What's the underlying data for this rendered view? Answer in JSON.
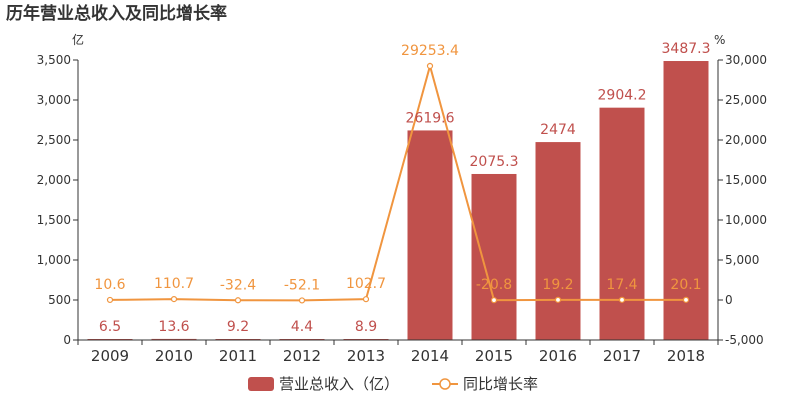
{
  "chart_data": {
    "type": "bar+line",
    "title": "历年营业总收入及同比增长率",
    "left_unit": "亿",
    "right_unit": "%",
    "categories": [
      "2009",
      "2010",
      "2011",
      "2012",
      "2013",
      "2014",
      "2015",
      "2016",
      "2017",
      "2018"
    ],
    "series": [
      {
        "name": "营业总收入（亿）",
        "type": "bar",
        "axis": "left",
        "color": "#c0504d",
        "values": [
          6.5,
          13.6,
          9.2,
          4.4,
          8.9,
          2619.6,
          2075.3,
          2474,
          2904.2,
          3487.3
        ],
        "labels": [
          "6.5",
          "13.6",
          "9.2",
          "4.4",
          "8.9",
          "2619.6",
          "2075.3",
          "2474",
          "2904.2",
          "3487.3"
        ]
      },
      {
        "name": "同比增长率",
        "type": "line",
        "axis": "right",
        "color": "#f0953f",
        "values": [
          10.6,
          110.7,
          -32.4,
          -52.1,
          102.7,
          29253.4,
          -20.8,
          19.2,
          17.4,
          20.1
        ],
        "labels": [
          "10.6",
          "110.7",
          "-32.4",
          "-52.1",
          "102.7",
          "29253.4",
          "-20.8",
          "19.2",
          "17.4",
          "20.1"
        ]
      }
    ],
    "left_axis": {
      "ylim": [
        0,
        3500
      ],
      "ticks": [
        0,
        500,
        1000,
        1500,
        2000,
        2500,
        3000,
        3500
      ],
      "tick_labels": [
        "0",
        "500",
        "1,000",
        "1,500",
        "2,000",
        "2,500",
        "3,000",
        "3,500"
      ]
    },
    "right_axis": {
      "ylim": [
        -5000,
        30000
      ],
      "ticks": [
        -5000,
        0,
        5000,
        10000,
        15000,
        20000,
        25000,
        30000
      ],
      "tick_labels": [
        "-5,000",
        "0",
        "5,000",
        "10,000",
        "15,000",
        "20,000",
        "25,000",
        "30,000"
      ]
    },
    "legend": {
      "position": "bottom-center",
      "items": [
        "营业总收入（亿）",
        "同比增长率"
      ]
    }
  }
}
